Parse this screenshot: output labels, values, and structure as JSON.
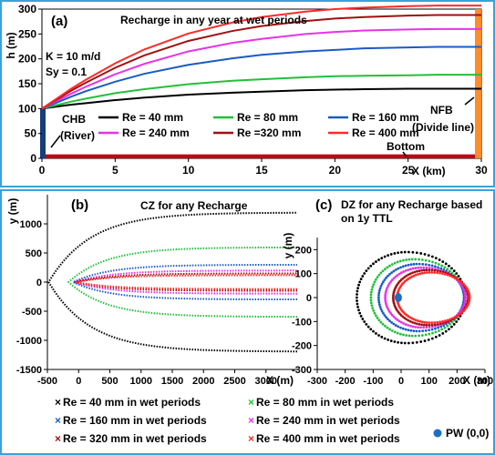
{
  "colors": {
    "re40": "#000000",
    "re80": "#22c03a",
    "re160": "#1a5bc4",
    "re240": "#e733e7",
    "re320": "#a01010",
    "re400": "#ff2a2a",
    "frame": "#39a3d9",
    "river": "#173d7a",
    "nfb": "#ff8c2a",
    "bottom": "#c00018",
    "pw": "#1a6fc4"
  },
  "chart_data": [
    {
      "id": "a",
      "type": "line",
      "panel_label": "(a)",
      "title": "Recharge in any year at wet periods",
      "xlabel": "X (km)",
      "ylabel": "h (m)",
      "xlim": [
        0,
        30
      ],
      "ylim": [
        0,
        300
      ],
      "xticks": [
        "0",
        "5",
        "10",
        "15",
        "20",
        "25",
        "30"
      ],
      "yticks": [
        "0",
        "50",
        "100",
        "150",
        "200",
        "250",
        "300"
      ],
      "params": [
        "K = 10 m/d",
        "Sy = 0.1"
      ],
      "annotations": [
        "CHB",
        "(River)",
        "NFB",
        "(Divide line)",
        "Bottom"
      ],
      "x": [
        0,
        1,
        2,
        3,
        5,
        7,
        10,
        13,
        15,
        18,
        20,
        22,
        25,
        27,
        30
      ],
      "series": [
        {
          "name": "Re = 40 mm",
          "color_key": "re40",
          "values": [
            100,
            104,
            108,
            111,
            117,
            122,
            128,
            132,
            134,
            137,
            138,
            139,
            140,
            140,
            140
          ]
        },
        {
          "name": "Re = 80 mm",
          "color_key": "re80",
          "values": [
            100,
            107,
            114,
            120,
            131,
            139,
            149,
            156,
            159,
            163,
            165,
            166,
            167,
            168,
            168
          ]
        },
        {
          "name": "Re = 160 mm",
          "color_key": "re160",
          "values": [
            100,
            112,
            124,
            135,
            154,
            170,
            188,
            201,
            208,
            215,
            218,
            221,
            223,
            224,
            224
          ]
        },
        {
          "name": "Re = 240 mm",
          "color_key": "re240",
          "values": [
            100,
            115,
            130,
            144,
            169,
            190,
            215,
            232,
            240,
            250,
            254,
            257,
            259,
            260,
            260
          ]
        },
        {
          "name": "Re =320 mm",
          "color_key": "re320",
          "values": [
            100,
            118,
            136,
            152,
            182,
            207,
            236,
            256,
            266,
            276,
            281,
            284,
            287,
            288,
            288
          ]
        },
        {
          "name": "Re = 400 mm",
          "color_key": "re400",
          "values": [
            100,
            120,
            140,
            158,
            191,
            219,
            251,
            273,
            284,
            295,
            300,
            303,
            306,
            307,
            307
          ]
        }
      ]
    },
    {
      "id": "b",
      "type": "scatter",
      "panel_label": "(b)",
      "title": "CZ for any Recharge",
      "xlabel": "X (m)",
      "ylabel": "y (m)",
      "xlim": [
        -500,
        3500
      ],
      "ylim": [
        -1500,
        1500
      ],
      "xticks": [
        "-500",
        "0",
        "500",
        "1000",
        "1500",
        "2000",
        "2500",
        "3000"
      ],
      "yticks": [
        "-1500",
        "-1000",
        "-500",
        "0",
        "500",
        "1000"
      ],
      "series": [
        {
          "name": "Re = 40 mm in wet periods",
          "color_key": "re40",
          "x0": -480,
          "half_width": 1200
        },
        {
          "name": "Re = 80 mm in wet periods",
          "color_key": "re80",
          "x0": -160,
          "half_width": 600
        },
        {
          "name": "Re = 160 mm in wet periods",
          "color_key": "re160",
          "x0": -90,
          "half_width": 300
        },
        {
          "name": "Re = 240 mm in wet periods",
          "color_key": "re240",
          "x0": -70,
          "half_width": 200
        },
        {
          "name": "Re = 320 mm in wet periods",
          "color_key": "re320",
          "x0": -55,
          "half_width": 150
        },
        {
          "name": "Re = 400 mm in wet periods",
          "color_key": "re400",
          "x0": -45,
          "half_width": 120
        }
      ]
    },
    {
      "id": "c",
      "type": "scatter",
      "panel_label": "(c)",
      "title_line1": "DZ for any Recharge based",
      "title_line2": "on 1y TTL",
      "xlabel": "X (m)",
      "ylabel": "y (m)",
      "xlim": [
        -300,
        300
      ],
      "ylim": [
        -300,
        300
      ],
      "xticks": [
        "-300",
        "-200",
        "-100",
        "0",
        "100",
        "200",
        "300"
      ],
      "yticks": [
        "-300",
        "-200",
        "-100",
        "0",
        "100",
        "200"
      ],
      "pw_label": "PW (0,0)",
      "series": [
        {
          "name": "Re = 40 mm in wet periods",
          "color_key": "re40",
          "cx": 20,
          "rx": 210,
          "ry": 190
        },
        {
          "name": "Re = 80 mm in wet periods",
          "color_key": "re80",
          "cx": 45,
          "rx": 180,
          "ry": 160
        },
        {
          "name": "Re = 160 mm in wet periods",
          "color_key": "re160",
          "cx": 60,
          "rx": 165,
          "ry": 140
        },
        {
          "name": "Re = 240 mm in wet periods",
          "color_key": "re240",
          "cx": 75,
          "rx": 155,
          "ry": 125
        },
        {
          "name": "Re = 320 mm in wet periods",
          "color_key": "re320",
          "cx": 95,
          "rx": 145,
          "ry": 115
        },
        {
          "name": "Re = 400 mm in wet periods",
          "color_key": "re400",
          "cx": 105,
          "rx": 140,
          "ry": 105
        }
      ]
    }
  ]
}
